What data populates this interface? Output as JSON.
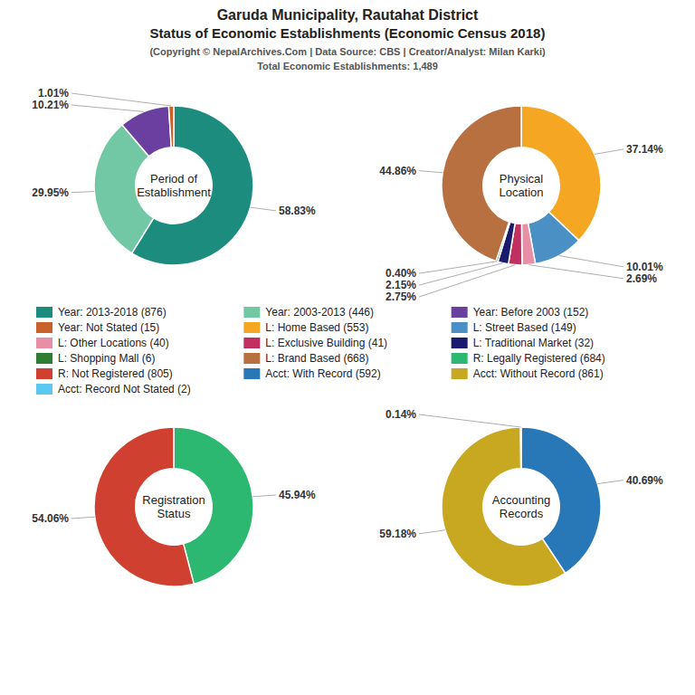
{
  "title": [
    "Garuda Municipality, Rautahat District",
    "Status of Economic Establishments (Economic Census 2018)"
  ],
  "subtitle": [
    "(Copyright © NepalArchives.Com | Data Source: CBS | Creator/Analyst: Milan Karki)",
    "Total Economic Establishments: 1,489"
  ],
  "legend": "center",
  "chart_data": [
    {
      "type": "pie",
      "title": "Period of\nEstablishment",
      "categories": [
        "Year: 2013-2018 (876)",
        "Year: 2003-2013 (446)",
        "Year: Before 2003 (152)",
        "Year: Not Stated (15)"
      ],
      "values": [
        58.83,
        29.95,
        10.21,
        1.01
      ],
      "value_labels": [
        "58.83%",
        "29.95%",
        "10.21%",
        "1.01%"
      ],
      "colors": [
        "#1c8c7e",
        "#72c8a4",
        "#6b3fa0",
        "#c8622a"
      ],
      "data_labels": true
    },
    {
      "type": "pie",
      "title": "Physical\nLocation",
      "categories": [
        "L: Home Based (553)",
        "L: Street Based (149)",
        "L: Other Locations (40)",
        "L: Exclusive Building (41)",
        "L: Traditional Market (32)",
        "L: Shopping Mall (6)",
        "L: Brand Based (668)"
      ],
      "values": [
        37.14,
        10.01,
        2.69,
        2.75,
        2.15,
        0.4,
        44.86
      ],
      "value_labels": [
        "37.14%",
        "10.01%",
        "2.69%",
        "2.75%",
        "2.15%",
        "0.40%",
        "44.86%"
      ],
      "colors": [
        "#f5a623",
        "#4a90c4",
        "#e88fa8",
        "#c03060",
        "#1a1a6e",
        "#2e7d32",
        "#b87040"
      ],
      "data_labels": true
    },
    {
      "type": "pie",
      "title": "Registration\nStatus",
      "categories": [
        "R: Legally Registered (684)",
        "R: Not Registered (805)"
      ],
      "values": [
        45.94,
        54.06
      ],
      "value_labels": [
        "45.94%",
        "54.06%"
      ],
      "colors": [
        "#2cb870",
        "#d04030"
      ],
      "data_labels": true
    },
    {
      "type": "pie",
      "title": "Accounting\nRecords",
      "categories": [
        "Acct: With Record (592)",
        "Acct: Without Record (861)",
        "Acct: Record Not Stated (2)"
      ],
      "values": [
        40.69,
        59.18,
        0.14
      ],
      "value_labels": [
        "40.69%",
        "59.18%",
        "0.14%"
      ],
      "colors": [
        "#2878b8",
        "#c8a820",
        "#5bc8f0"
      ],
      "data_labels": true
    }
  ]
}
